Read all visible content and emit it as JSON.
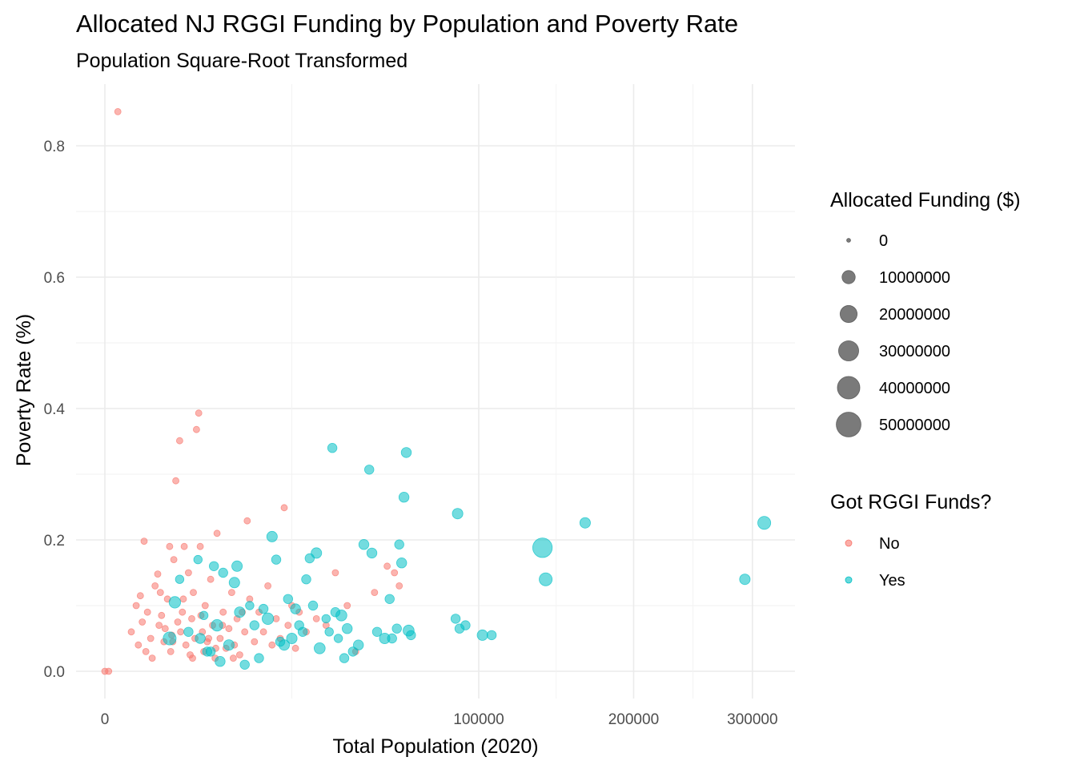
{
  "chart_data": {
    "type": "scatter",
    "title": "Allocated NJ RGGI Funding by Population and Poverty Rate",
    "subtitle": "Population Square-Root Transformed",
    "xlabel": "Total Population (2020)",
    "ylabel": "Poverty Rate (%)",
    "x_scale": "sqrt",
    "xlim": [
      0,
      335000
    ],
    "ylim": [
      -0.04,
      0.88
    ],
    "x_ticks": [
      0,
      100000,
      200000,
      300000
    ],
    "x_tick_labels": [
      "0",
      "100000",
      "200000",
      "300000"
    ],
    "y_ticks": [
      0.0,
      0.2,
      0.4,
      0.6,
      0.8
    ],
    "y_tick_labels": [
      "0.0",
      "0.2",
      "0.4",
      "0.6",
      "0.8"
    ],
    "grid": true,
    "colors": {
      "No": "#F8766D",
      "Yes": "#00BFC4",
      "size_legend": "#595959"
    },
    "size_legend": {
      "title": "Allocated Funding ($)",
      "items": [
        {
          "label": "0",
          "value": 0
        },
        {
          "label": "10000000",
          "value": 10000000
        },
        {
          "label": "20000000",
          "value": 20000000
        },
        {
          "label": "30000000",
          "value": 30000000
        },
        {
          "label": "40000000",
          "value": 40000000
        },
        {
          "label": "50000000",
          "value": 50000000
        }
      ]
    },
    "color_legend": {
      "title": "Got RGGI Funds?",
      "items": [
        {
          "label": "No",
          "color": "#F8766D"
        },
        {
          "label": "Yes",
          "color": "#00BFC4"
        }
      ]
    },
    "legend_position": "right",
    "series": [
      {
        "name": "No",
        "points": [
          [
            0,
            0.0,
            0
          ],
          [
            10,
            0.0,
            0
          ],
          [
            120,
            0.852,
            0
          ],
          [
            500,
            0.06,
            0
          ],
          [
            700,
            0.1,
            0
          ],
          [
            800,
            0.04,
            0
          ],
          [
            900,
            0.115,
            0
          ],
          [
            1000,
            0.075,
            0
          ],
          [
            1100,
            0.198,
            0
          ],
          [
            1200,
            0.03,
            0
          ],
          [
            1300,
            0.09,
            0
          ],
          [
            1500,
            0.05,
            0
          ],
          [
            1600,
            0.02,
            0
          ],
          [
            1800,
            0.13,
            0
          ],
          [
            2000,
            0.148,
            0
          ],
          [
            2100,
            0.07,
            0
          ],
          [
            2300,
            0.085,
            0
          ],
          [
            2500,
            0.045,
            0
          ],
          [
            2600,
            0.065,
            0
          ],
          [
            2800,
            0.11,
            0
          ],
          [
            3000,
            0.19,
            0
          ],
          [
            3100,
            0.03,
            0
          ],
          [
            3200,
            0.055,
            0
          ],
          [
            3400,
            0.17,
            0
          ],
          [
            3600,
            0.29,
            0
          ],
          [
            3800,
            0.075,
            0
          ],
          [
            4000,
            0.351,
            0
          ],
          [
            4100,
            0.06,
            0
          ],
          [
            4300,
            0.09,
            0
          ],
          [
            4500,
            0.19,
            0
          ],
          [
            4700,
            0.04,
            0
          ],
          [
            5000,
            0.15,
            0
          ],
          [
            5200,
            0.025,
            0
          ],
          [
            5400,
            0.08,
            0
          ],
          [
            5600,
            0.12,
            0
          ],
          [
            5800,
            0.05,
            0
          ],
          [
            6000,
            0.368,
            0
          ],
          [
            6300,
            0.393,
            0
          ],
          [
            6500,
            0.19,
            0
          ],
          [
            6800,
            0.06,
            0
          ],
          [
            7000,
            0.03,
            0
          ],
          [
            7200,
            0.1,
            0
          ],
          [
            7500,
            0.045,
            0
          ],
          [
            8000,
            0.14,
            0
          ],
          [
            8300,
            0.07,
            0
          ],
          [
            8700,
            0.02,
            0
          ],
          [
            9000,
            0.21,
            0
          ],
          [
            9500,
            0.05,
            0
          ],
          [
            10000,
            0.09,
            0
          ],
          [
            10500,
            0.035,
            0
          ],
          [
            11000,
            0.065,
            0
          ],
          [
            11500,
            0.12,
            0
          ],
          [
            12000,
            0.04,
            0
          ],
          [
            12500,
            0.08,
            0
          ],
          [
            13000,
            0.025,
            0
          ],
          [
            14000,
            0.06,
            0
          ],
          [
            14500,
            0.229,
            0
          ],
          [
            15000,
            0.11,
            0
          ],
          [
            16000,
            0.045,
            0
          ],
          [
            17000,
            0.09,
            0
          ],
          [
            18000,
            0.06,
            0
          ],
          [
            19000,
            0.13,
            0
          ],
          [
            20000,
            0.04,
            0
          ],
          [
            21000,
            0.08,
            0
          ],
          [
            22000,
            0.05,
            0
          ],
          [
            23000,
            0.249,
            0
          ],
          [
            24000,
            0.07,
            0
          ],
          [
            25000,
            0.1,
            0
          ],
          [
            26000,
            0.035,
            0
          ],
          [
            27000,
            0.09,
            0
          ],
          [
            29000,
            0.06,
            0
          ],
          [
            32000,
            0.08,
            0
          ],
          [
            35000,
            0.07,
            0
          ],
          [
            38000,
            0.15,
            0
          ],
          [
            42000,
            0.1,
            0
          ],
          [
            45000,
            0.03,
            0
          ],
          [
            52000,
            0.12,
            0
          ],
          [
            57000,
            0.16,
            0
          ],
          [
            60000,
            0.15,
            0
          ],
          [
            62000,
            0.13,
            0
          ],
          [
            2200,
            0.12,
            0
          ],
          [
            3300,
            0.045,
            0
          ],
          [
            4400,
            0.11,
            0
          ],
          [
            5500,
            0.02,
            0
          ],
          [
            6600,
            0.085,
            0
          ],
          [
            7700,
            0.05,
            0
          ],
          [
            8800,
            0.035,
            0
          ],
          [
            9900,
            0.07,
            0
          ],
          [
            11800,
            0.02,
            0
          ],
          [
            13500,
            0.09,
            0
          ]
        ]
      },
      {
        "name": "Yes",
        "points": [
          [
            3000,
            0.05,
            5000000
          ],
          [
            3500,
            0.105,
            3000000
          ],
          [
            4000,
            0.14,
            500000
          ],
          [
            5000,
            0.06,
            1000000
          ],
          [
            6200,
            0.17,
            500000
          ],
          [
            6500,
            0.05,
            1500000
          ],
          [
            7000,
            0.085,
            500000
          ],
          [
            8000,
            0.03,
            1000000
          ],
          [
            8500,
            0.16,
            1000000
          ],
          [
            9000,
            0.07,
            3000000
          ],
          [
            9500,
            0.015,
            1500000
          ],
          [
            10000,
            0.15,
            1000000
          ],
          [
            11000,
            0.04,
            2000000
          ],
          [
            12000,
            0.135,
            2000000
          ],
          [
            12500,
            0.16,
            2000000
          ],
          [
            13000,
            0.09,
            2000000
          ],
          [
            14000,
            0.01,
            1000000
          ],
          [
            15000,
            0.1,
            500000
          ],
          [
            16000,
            0.07,
            1000000
          ],
          [
            17000,
            0.02,
            1000000
          ],
          [
            18000,
            0.095,
            1000000
          ],
          [
            19000,
            0.08,
            3000000
          ],
          [
            20000,
            0.205,
            2000000
          ],
          [
            21000,
            0.17,
            1000000
          ],
          [
            23000,
            0.04,
            2000000
          ],
          [
            24000,
            0.11,
            1000000
          ],
          [
            25000,
            0.05,
            2000000
          ],
          [
            26000,
            0.095,
            1500000
          ],
          [
            28000,
            0.06,
            1000000
          ],
          [
            29000,
            0.14,
            1000000
          ],
          [
            30000,
            0.172,
            1000000
          ],
          [
            31000,
            0.1,
            1000000
          ],
          [
            32000,
            0.18,
            2000000
          ],
          [
            33000,
            0.035,
            2500000
          ],
          [
            35000,
            0.08,
            500000
          ],
          [
            37000,
            0.34,
            1000000
          ],
          [
            38000,
            0.09,
            1000000
          ],
          [
            39000,
            0.05,
            500000
          ],
          [
            40000,
            0.085,
            2500000
          ],
          [
            41000,
            0.02,
            1000000
          ],
          [
            42000,
            0.065,
            1500000
          ],
          [
            44000,
            0.03,
            1000000
          ],
          [
            46000,
            0.04,
            1500000
          ],
          [
            48000,
            0.193,
            1500000
          ],
          [
            50000,
            0.307,
            1000000
          ],
          [
            51000,
            0.18,
            1500000
          ],
          [
            53000,
            0.06,
            1000000
          ],
          [
            56000,
            0.05,
            2000000
          ],
          [
            58000,
            0.11,
            1000000
          ],
          [
            61000,
            0.065,
            1000000
          ],
          [
            62000,
            0.193,
            1000000
          ],
          [
            63000,
            0.165,
            1500000
          ],
          [
            64000,
            0.265,
            1500000
          ],
          [
            65000,
            0.333,
            1500000
          ],
          [
            66000,
            0.062,
            2500000
          ],
          [
            67000,
            0.055,
            1000000
          ],
          [
            88000,
            0.08,
            1000000
          ],
          [
            89000,
            0.24,
            2000000
          ],
          [
            90000,
            0.065,
            1000000
          ],
          [
            93000,
            0.07,
            1000000
          ],
          [
            102000,
            0.055,
            2000000
          ],
          [
            107000,
            0.055,
            1000000
          ],
          [
            137000,
            0.188,
            20000000
          ],
          [
            139000,
            0.14,
            5000000
          ],
          [
            165000,
            0.226,
            2000000
          ],
          [
            293000,
            0.14,
            2000000
          ],
          [
            311000,
            0.226,
            5000000
          ],
          [
            59000,
            0.05,
            1000000
          ],
          [
            36000,
            0.06,
            500000
          ],
          [
            27000,
            0.07,
            1000000
          ],
          [
            22000,
            0.045,
            1000000
          ],
          [
            7500,
            0.03,
            1000000
          ]
        ]
      }
    ]
  }
}
